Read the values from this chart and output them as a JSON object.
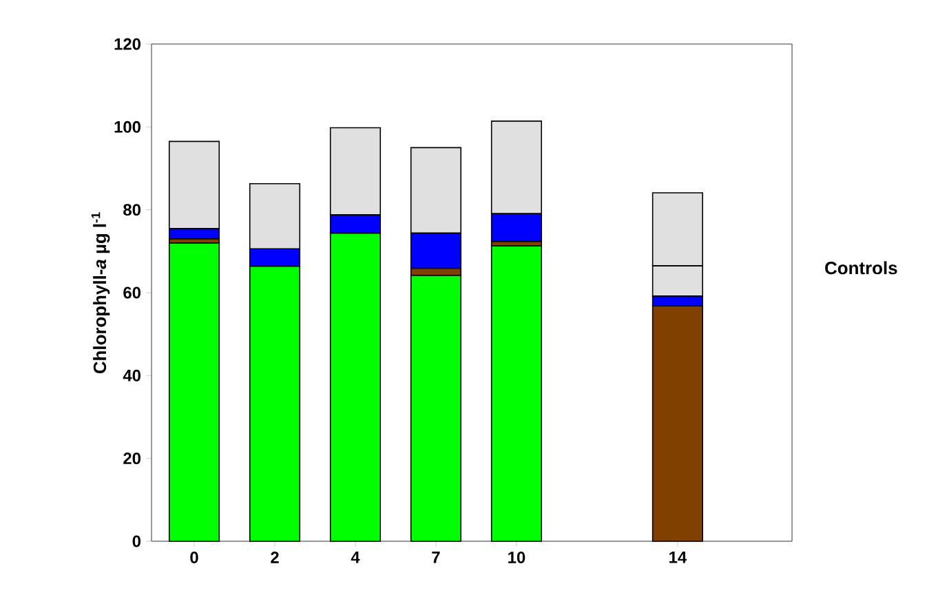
{
  "chart_data": {
    "type": "bar",
    "stacked": true,
    "ylabel": "Chlorophyll-*a* µg l$^{-1}$",
    "categories": [
      "0",
      "2",
      "4",
      "7",
      "10",
      null,
      "14"
    ],
    "series": [
      {
        "color": "#00ff00",
        "values": [
          72.0,
          66.4,
          74.4,
          64.2,
          71.3,
          null,
          null
        ]
      },
      {
        "color": "#804000",
        "values": [
          1.0,
          null,
          null,
          1.7,
          1.1,
          null,
          56.8
        ]
      },
      {
        "color": "#0000ff",
        "values": [
          2.5,
          4.2,
          4.4,
          8.5,
          6.7,
          null,
          2.4
        ]
      },
      {
        "color": "#e0e0e0",
        "values": [
          21.0,
          15.7,
          21.0,
          20.6,
          22.3,
          null,
          7.3
        ]
      },
      {
        "color": "#e0e0e0",
        "values": [
          null,
          null,
          null,
          null,
          null,
          null,
          17.6
        ]
      }
    ],
    "ylim": [
      0,
      120
    ],
    "yticks": [
      0,
      20,
      40,
      60,
      80,
      100,
      120
    ],
    "annotations": [
      "Controls"
    ]
  }
}
